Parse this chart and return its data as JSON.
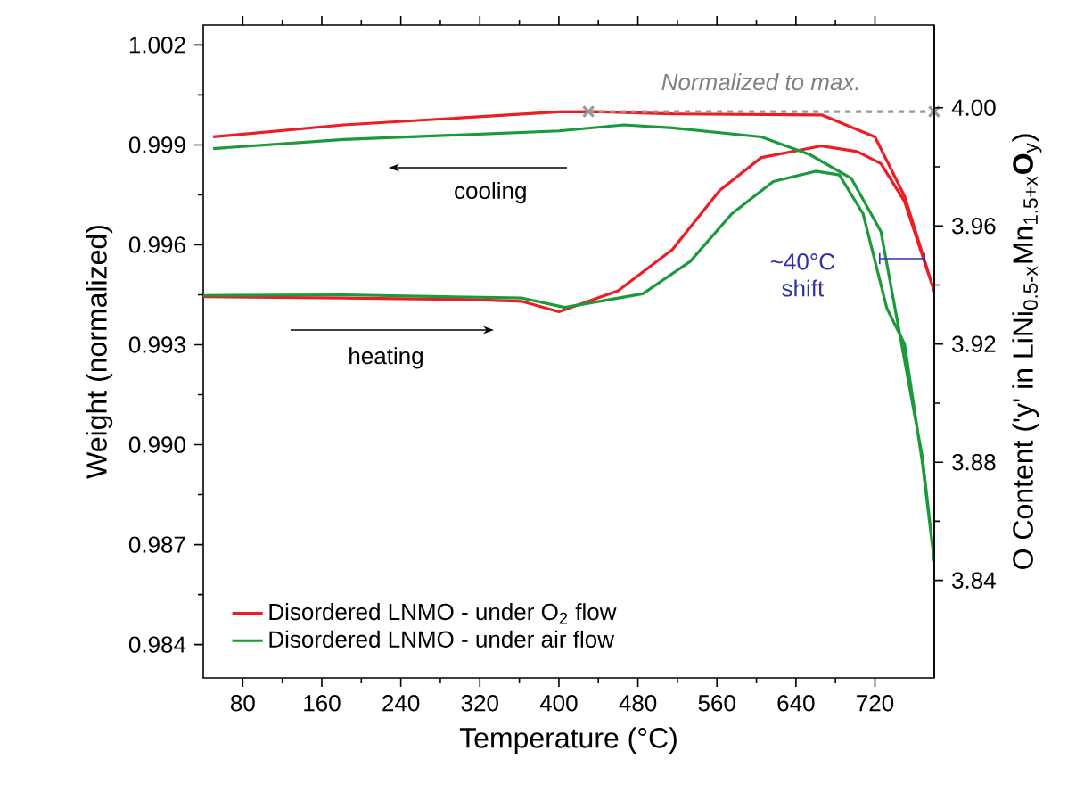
{
  "chart_data": {
    "type": "line",
    "xlabel": "Temperature (°C)",
    "ylabel": "Weight (normalized)",
    "y2label": "O Content ('y' in LiNi$_{0.5-x}$Mn$_{1.5+x}$**O**$_{y}$)",
    "xlim": [
      40,
      780
    ],
    "xticks": [
      80,
      160,
      240,
      320,
      400,
      480,
      560,
      640,
      720
    ],
    "ylim": [
      0.983,
      1.0026
    ],
    "yticks": [
      0.984,
      0.987,
      {
        "value": 0.99,
        "label": "0.990"
      },
      0.993,
      0.996,
      0.999,
      1.002
    ],
    "y2lim": [
      3.807,
      4.028
    ],
    "y2ticks": [
      3.84,
      3.88,
      3.92,
      3.96,
      {
        "value": 4.0,
        "label": "4.00"
      }
    ],
    "legend": "bottom left",
    "series": [
      {
        "name": "Disordered LNMO - under O$_{2}$ flow",
        "color": "#ee1c25",
        "x": [
          40,
          182,
          303,
          363,
          400,
          460,
          515,
          563,
          605,
          666,
          702,
          726,
          750,
          780,
          750,
          720,
          666,
          515,
          436,
          400,
          182,
          50
        ],
        "values": [
          0.99444,
          0.9944,
          0.99436,
          0.9943,
          0.99399,
          0.99462,
          0.99586,
          0.99764,
          0.99862,
          0.99897,
          0.9988,
          0.99844,
          0.9973,
          0.9946,
          0.99746,
          0.99924,
          0.9999,
          0.99993,
          1.0,
          0.99999,
          0.9996,
          0.99924
        ]
      },
      {
        "name": "Disordered LNMO - under air flow",
        "color": "#1a9a3a",
        "x": [
          40,
          182,
          363,
          406,
          485,
          533,
          575,
          617,
          660,
          684,
          708,
          732,
          750,
          768,
          780,
          768,
          726,
          696,
          654,
          605,
          515,
          466,
          400,
          182,
          50
        ],
        "values": [
          0.99448,
          0.9945,
          0.9944,
          0.99412,
          0.99453,
          0.9955,
          0.99693,
          0.9979,
          0.99821,
          0.9981,
          0.99693,
          0.9941,
          0.99302,
          0.98946,
          0.98652,
          0.98963,
          0.9964,
          0.998,
          0.99871,
          0.99924,
          0.99951,
          0.9996,
          0.99942,
          0.99916,
          0.99889
        ]
      },
      {
        "color": "#999999",
        "line_style": "dashed",
        "marker": "cross",
        "x": [
          430,
          780
        ],
        "values": [
          1.0,
          1.0
        ]
      }
    ],
    "annotations": [
      "Normalized to max.",
      "cooling",
      "heating",
      "~40°C shift"
    ]
  }
}
